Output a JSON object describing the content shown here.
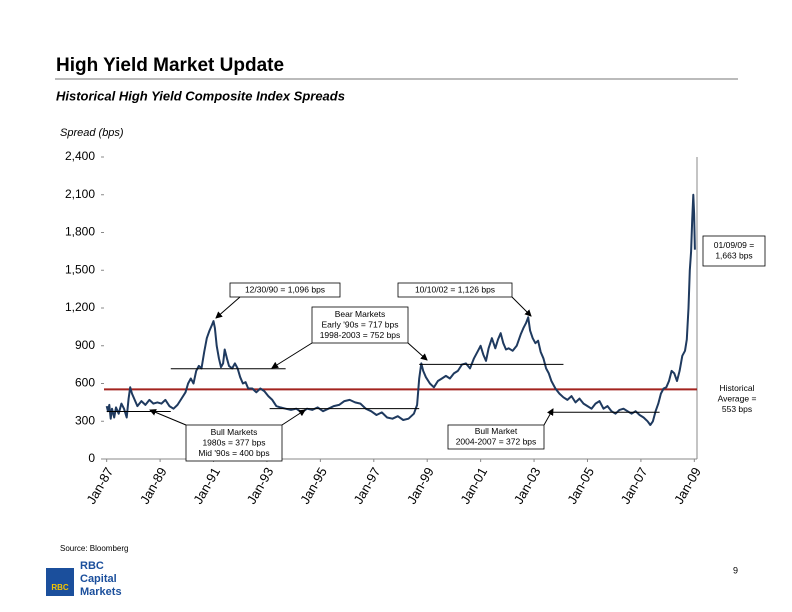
{
  "header": {
    "title": "High Yield Market Update",
    "subtitle": "Historical High Yield Composite Index Spreads"
  },
  "footer": {
    "source": "Source: Bloomberg",
    "page": "9",
    "logo_badge": "RBC",
    "logo_text": [
      "RBC",
      "Capital",
      "Markets"
    ]
  },
  "chart_data": {
    "type": "line",
    "y_label": "Spread (bps)",
    "color": "#1f3a5f",
    "grid": false,
    "xlim": [
      1986.9,
      2009.1
    ],
    "xticks": [
      {
        "value": 1987,
        "label": "Jan-87"
      },
      {
        "value": 1989,
        "label": "Jan-89"
      },
      {
        "value": 1991,
        "label": "Jan-91"
      },
      {
        "value": 1993,
        "label": "Jan-93"
      },
      {
        "value": 1995,
        "label": "Jan-95"
      },
      {
        "value": 1997,
        "label": "Jan-97"
      },
      {
        "value": 1999,
        "label": "Jan-99"
      },
      {
        "value": 2001,
        "label": "Jan-01"
      },
      {
        "value": 2003,
        "label": "Jan-03"
      },
      {
        "value": 2005,
        "label": "Jan-05"
      },
      {
        "value": 2007,
        "label": "Jan-07"
      },
      {
        "value": 2009,
        "label": "Jan-09"
      }
    ],
    "ylim": [
      0,
      2400
    ],
    "yticks": [
      0,
      300,
      600,
      900,
      {
        "value": 1200,
        "label": "1,200"
      },
      {
        "value": 1500,
        "label": "1,500"
      },
      {
        "value": 1800,
        "label": "1,800"
      },
      {
        "value": 2100,
        "label": "2,100"
      },
      {
        "value": 2400,
        "label": "2,400"
      }
    ],
    "x": [
      1987.0,
      1987.05,
      1987.1,
      1987.15,
      1987.2,
      1987.28,
      1987.35,
      1987.45,
      1987.55,
      1987.65,
      1987.75,
      1987.82,
      1987.88,
      1987.95,
      1988.05,
      1988.15,
      1988.3,
      1988.45,
      1988.6,
      1988.75,
      1988.9,
      1989.05,
      1989.2,
      1989.35,
      1989.5,
      1989.65,
      1989.8,
      1989.95,
      1990.05,
      1990.15,
      1990.25,
      1990.35,
      1990.45,
      1990.55,
      1990.65,
      1990.75,
      1990.85,
      1990.95,
      1991.0,
      1991.05,
      1991.12,
      1991.2,
      1991.28,
      1991.36,
      1991.42,
      1991.5,
      1991.58,
      1991.7,
      1991.8,
      1991.9,
      1992.0,
      1992.1,
      1992.2,
      1992.3,
      1992.45,
      1992.6,
      1992.75,
      1992.9,
      1993.05,
      1993.2,
      1993.35,
      1993.5,
      1993.7,
      1993.9,
      1994.1,
      1994.3,
      1994.5,
      1994.7,
      1994.9,
      1995.1,
      1995.3,
      1995.5,
      1995.7,
      1995.9,
      1996.1,
      1996.3,
      1996.5,
      1996.7,
      1996.9,
      1997.1,
      1997.3,
      1997.5,
      1997.7,
      1997.9,
      1998.1,
      1998.3,
      1998.5,
      1998.62,
      1998.7,
      1998.78,
      1998.85,
      1998.95,
      1999.1,
      1999.25,
      1999.4,
      1999.55,
      1999.7,
      1999.85,
      2000.0,
      2000.15,
      2000.3,
      2000.45,
      2000.6,
      2000.75,
      2000.9,
      2001.0,
      2001.1,
      2001.2,
      2001.3,
      2001.42,
      2001.55,
      2001.65,
      2001.75,
      2001.85,
      2001.95,
      2002.05,
      2002.2,
      2002.35,
      2002.5,
      2002.6,
      2002.7,
      2002.78,
      2002.85,
      2002.95,
      2003.05,
      2003.15,
      2003.25,
      2003.35,
      2003.45,
      2003.55,
      2003.65,
      2003.8,
      2003.95,
      2004.1,
      2004.25,
      2004.4,
      2004.55,
      2004.7,
      2004.85,
      2005.0,
      2005.15,
      2005.3,
      2005.45,
      2005.6,
      2005.75,
      2005.9,
      2006.05,
      2006.2,
      2006.35,
      2006.5,
      2006.65,
      2006.8,
      2006.95,
      2007.1,
      2007.25,
      2007.35,
      2007.45,
      2007.55,
      2007.65,
      2007.75,
      2007.85,
      2007.95,
      2008.05,
      2008.15,
      2008.25,
      2008.35,
      2008.45,
      2008.55,
      2008.65,
      2008.72,
      2008.78,
      2008.83,
      2008.88,
      2008.92,
      2008.96,
      2008.99,
      2009.02
    ],
    "values": [
      420,
      380,
      430,
      320,
      400,
      330,
      410,
      360,
      440,
      400,
      330,
      480,
      570,
      520,
      470,
      420,
      460,
      430,
      470,
      440,
      450,
      440,
      470,
      420,
      400,
      430,
      480,
      530,
      600,
      640,
      600,
      700,
      740,
      720,
      850,
      960,
      1020,
      1070,
      1096,
      1040,
      900,
      800,
      730,
      760,
      870,
      800,
      740,
      720,
      760,
      720,
      650,
      600,
      610,
      560,
      560,
      530,
      560,
      540,
      500,
      470,
      420,
      410,
      400,
      390,
      400,
      370,
      400,
      390,
      410,
      380,
      400,
      420,
      430,
      460,
      470,
      450,
      440,
      400,
      380,
      350,
      370,
      330,
      320,
      340,
      310,
      320,
      360,
      430,
      640,
      760,
      700,
      650,
      600,
      570,
      620,
      640,
      660,
      640,
      680,
      700,
      750,
      760,
      720,
      800,
      860,
      900,
      830,
      780,
      880,
      960,
      880,
      950,
      1000,
      920,
      870,
      880,
      860,
      900,
      990,
      1040,
      1080,
      1126,
      1020,
      960,
      920,
      940,
      850,
      800,
      720,
      680,
      620,
      560,
      520,
      490,
      470,
      500,
      450,
      480,
      440,
      420,
      400,
      440,
      460,
      400,
      420,
      380,
      360,
      390,
      400,
      380,
      360,
      380,
      350,
      330,
      300,
      270,
      300,
      380,
      440,
      520,
      560,
      570,
      620,
      700,
      680,
      620,
      700,
      820,
      860,
      950,
      1200,
      1500,
      1650,
      1900,
      2100,
      1950,
      1663
    ],
    "average": {
      "value": 553,
      "color": "#a3231f"
    },
    "reference_lines": [
      {
        "value": 377,
        "xlim": [
          1987.0,
          1989.4
        ]
      },
      {
        "value": 717,
        "xlim": [
          1989.4,
          1993.7
        ]
      },
      {
        "value": 400,
        "xlim": [
          1993.1,
          1998.7
        ]
      },
      {
        "value": 752,
        "xlim": [
          1998.7,
          2004.1
        ]
      },
      {
        "value": 372,
        "xlim": [
          2003.7,
          2007.7
        ]
      }
    ],
    "annotations": [
      {
        "lines": [
          "01/09/09 =",
          "1,663 bps"
        ]
      },
      {
        "lines": [
          "Historical",
          "Average =",
          "553 bps"
        ]
      },
      {
        "lines": [
          "12/30/90 = 1,096 bps"
        ]
      },
      {
        "lines": [
          "10/10/02 = 1,126 bps"
        ]
      },
      {
        "lines": [
          "Bear Markets",
          "Early '90s = 717 bps",
          "1998-2003 = 752 bps"
        ]
      },
      {
        "lines": [
          "Bull Markets",
          "1980s = 377 bps",
          "Mid '90s = 400 bps"
        ]
      },
      {
        "lines": [
          "Bull Market",
          "2004-2007 = 372 bps"
        ]
      }
    ]
  }
}
